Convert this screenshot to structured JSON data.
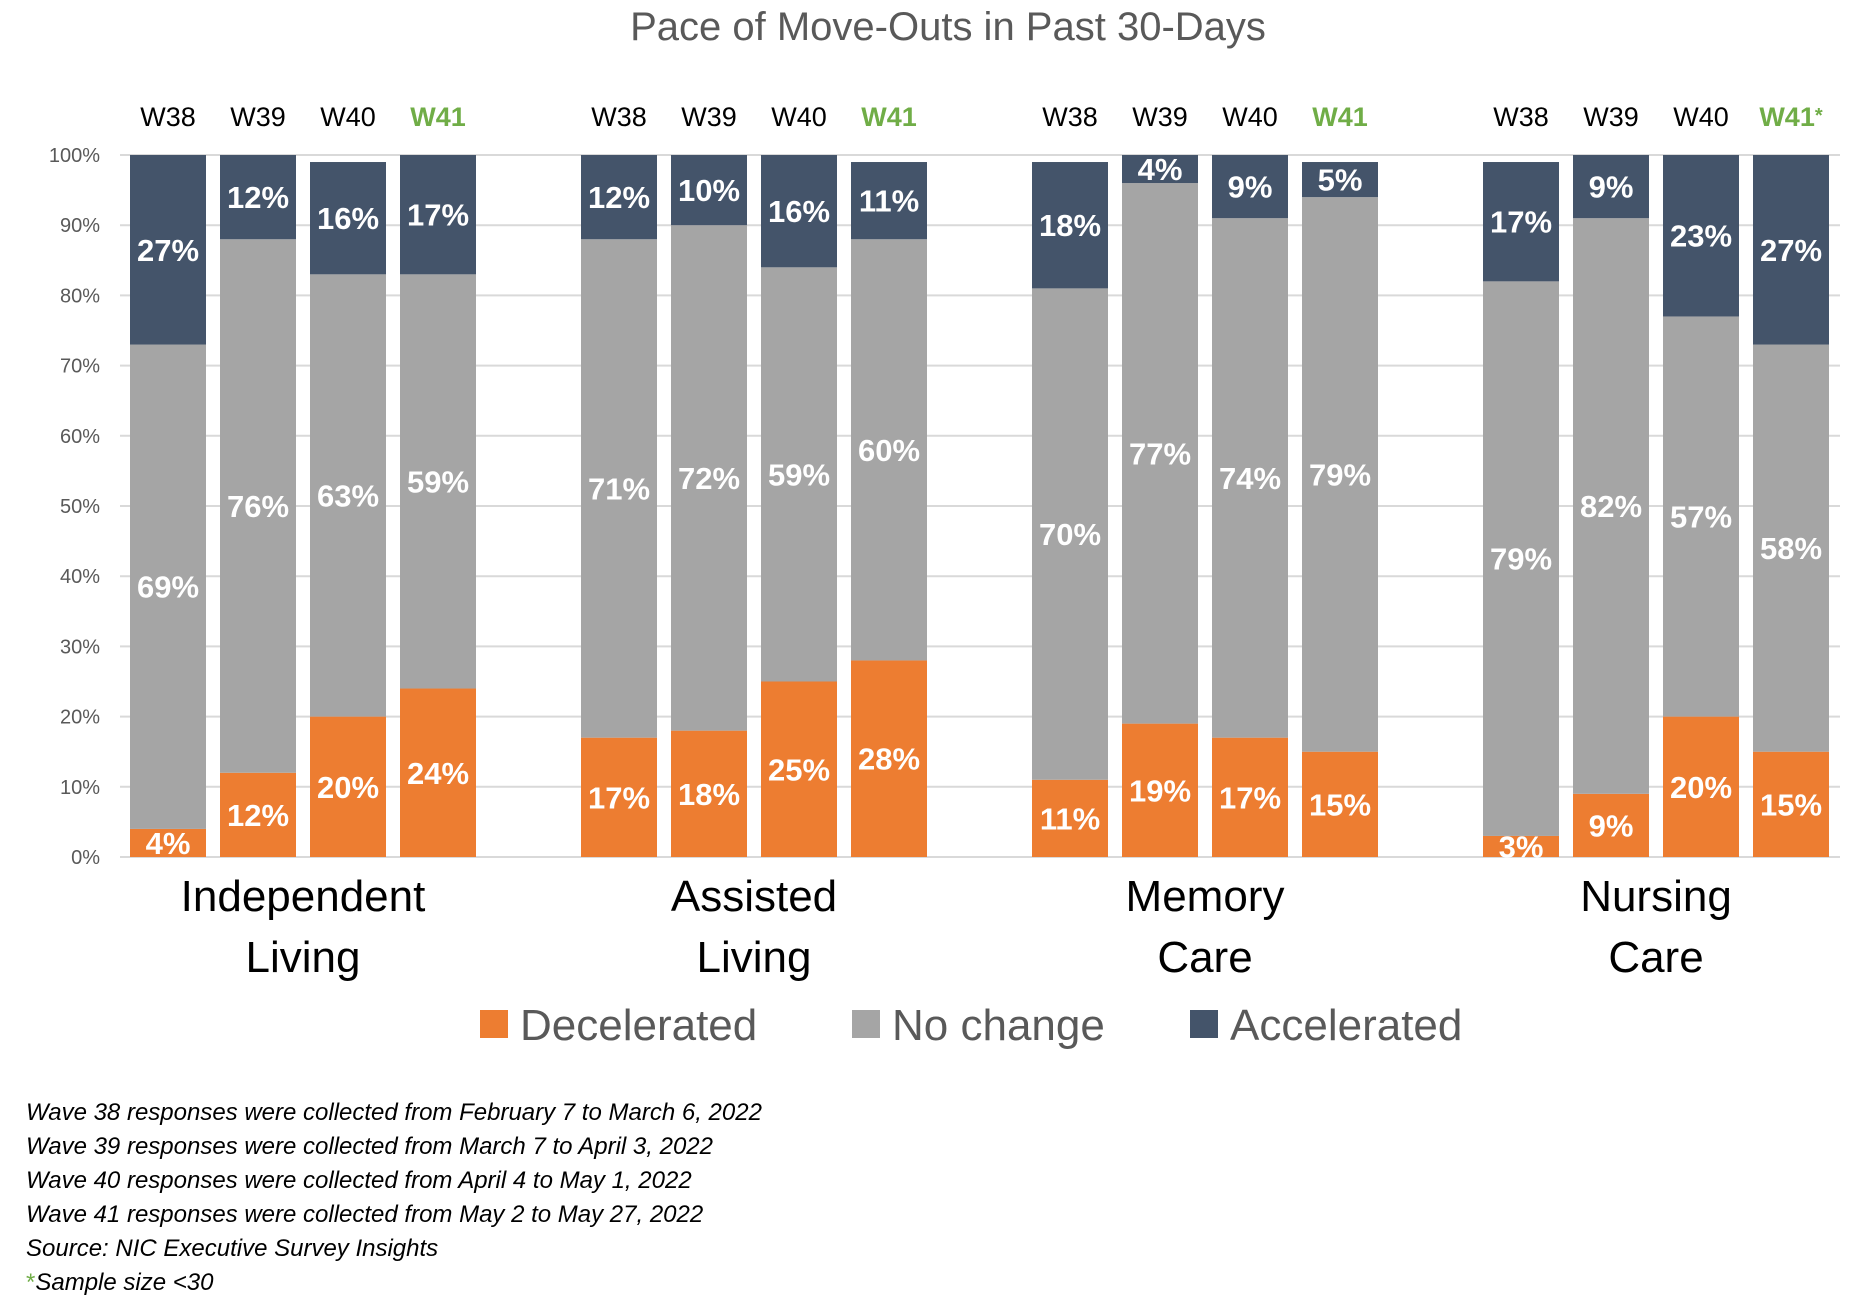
{
  "chart_data": {
    "type": "bar",
    "stacked": true,
    "percent": true,
    "title": "Pace of Move-Outs in Past 30-Days",
    "ylim": [
      0,
      100
    ],
    "yticks": [
      "0%",
      "10%",
      "20%",
      "30%",
      "40%",
      "50%",
      "60%",
      "70%",
      "80%",
      "90%",
      "100%"
    ],
    "grid": true,
    "legend_position": "bottom",
    "series": [
      {
        "name": "Decelerated",
        "color": "#ed7d31"
      },
      {
        "name": "No change",
        "color": "#a5a5a5"
      },
      {
        "name": "Accelerated",
        "color": "#44546a"
      }
    ],
    "groups": [
      {
        "label_lines": [
          "Independent",
          "Living"
        ],
        "bars": [
          {
            "wave": "W38",
            "current": false,
            "star": "",
            "decelerated": 4,
            "no_change": 69,
            "accelerated": 27
          },
          {
            "wave": "W39",
            "current": false,
            "star": "",
            "decelerated": 12,
            "no_change": 76,
            "accelerated": 12
          },
          {
            "wave": "W40",
            "current": false,
            "star": "",
            "decelerated": 20,
            "no_change": 63,
            "accelerated": 16
          },
          {
            "wave": "W41",
            "current": true,
            "star": "",
            "decelerated": 24,
            "no_change": 59,
            "accelerated": 17
          }
        ]
      },
      {
        "label_lines": [
          "Assisted",
          "Living"
        ],
        "bars": [
          {
            "wave": "W38",
            "current": false,
            "star": "",
            "decelerated": 17,
            "no_change": 71,
            "accelerated": 12
          },
          {
            "wave": "W39",
            "current": false,
            "star": "",
            "decelerated": 18,
            "no_change": 72,
            "accelerated": 10
          },
          {
            "wave": "W40",
            "current": false,
            "star": "",
            "decelerated": 25,
            "no_change": 59,
            "accelerated": 16
          },
          {
            "wave": "W41",
            "current": true,
            "star": "",
            "decelerated": 28,
            "no_change": 60,
            "accelerated": 11
          }
        ]
      },
      {
        "label_lines": [
          "Memory",
          "Care"
        ],
        "bars": [
          {
            "wave": "W38",
            "current": false,
            "star": "",
            "decelerated": 11,
            "no_change": 70,
            "accelerated": 18
          },
          {
            "wave": "W39",
            "current": false,
            "star": "",
            "decelerated": 19,
            "no_change": 77,
            "accelerated": 4
          },
          {
            "wave": "W40",
            "current": false,
            "star": "",
            "decelerated": 17,
            "no_change": 74,
            "accelerated": 9
          },
          {
            "wave": "W41",
            "current": true,
            "star": "",
            "decelerated": 15,
            "no_change": 79,
            "accelerated": 5
          }
        ]
      },
      {
        "label_lines": [
          "Nursing",
          "Care"
        ],
        "bars": [
          {
            "wave": "W38",
            "current": false,
            "star": "",
            "decelerated": 3,
            "no_change": 79,
            "accelerated": 17
          },
          {
            "wave": "W39",
            "current": false,
            "star": "",
            "decelerated": 9,
            "no_change": 82,
            "accelerated": 9
          },
          {
            "wave": "W40",
            "current": false,
            "star": "",
            "decelerated": 20,
            "no_change": 57,
            "accelerated": 23
          },
          {
            "wave": "W41",
            "current": true,
            "star": "*",
            "decelerated": 15,
            "no_change": 58,
            "accelerated": 27
          }
        ]
      }
    ]
  },
  "notes": [
    "Wave 38 responses were collected from February 7 to March 6, 2022",
    "Wave 39 responses were collected from March 7 to April 3, 2022",
    "Wave 40 responses were collected from April 4 to May 1, 2022",
    "Wave 41 responses were collected from May 2 to May 27, 2022",
    "Source: NIC Executive Survey Insights"
  ],
  "footnote": {
    "star": "*",
    "text": "Sample size <30"
  }
}
